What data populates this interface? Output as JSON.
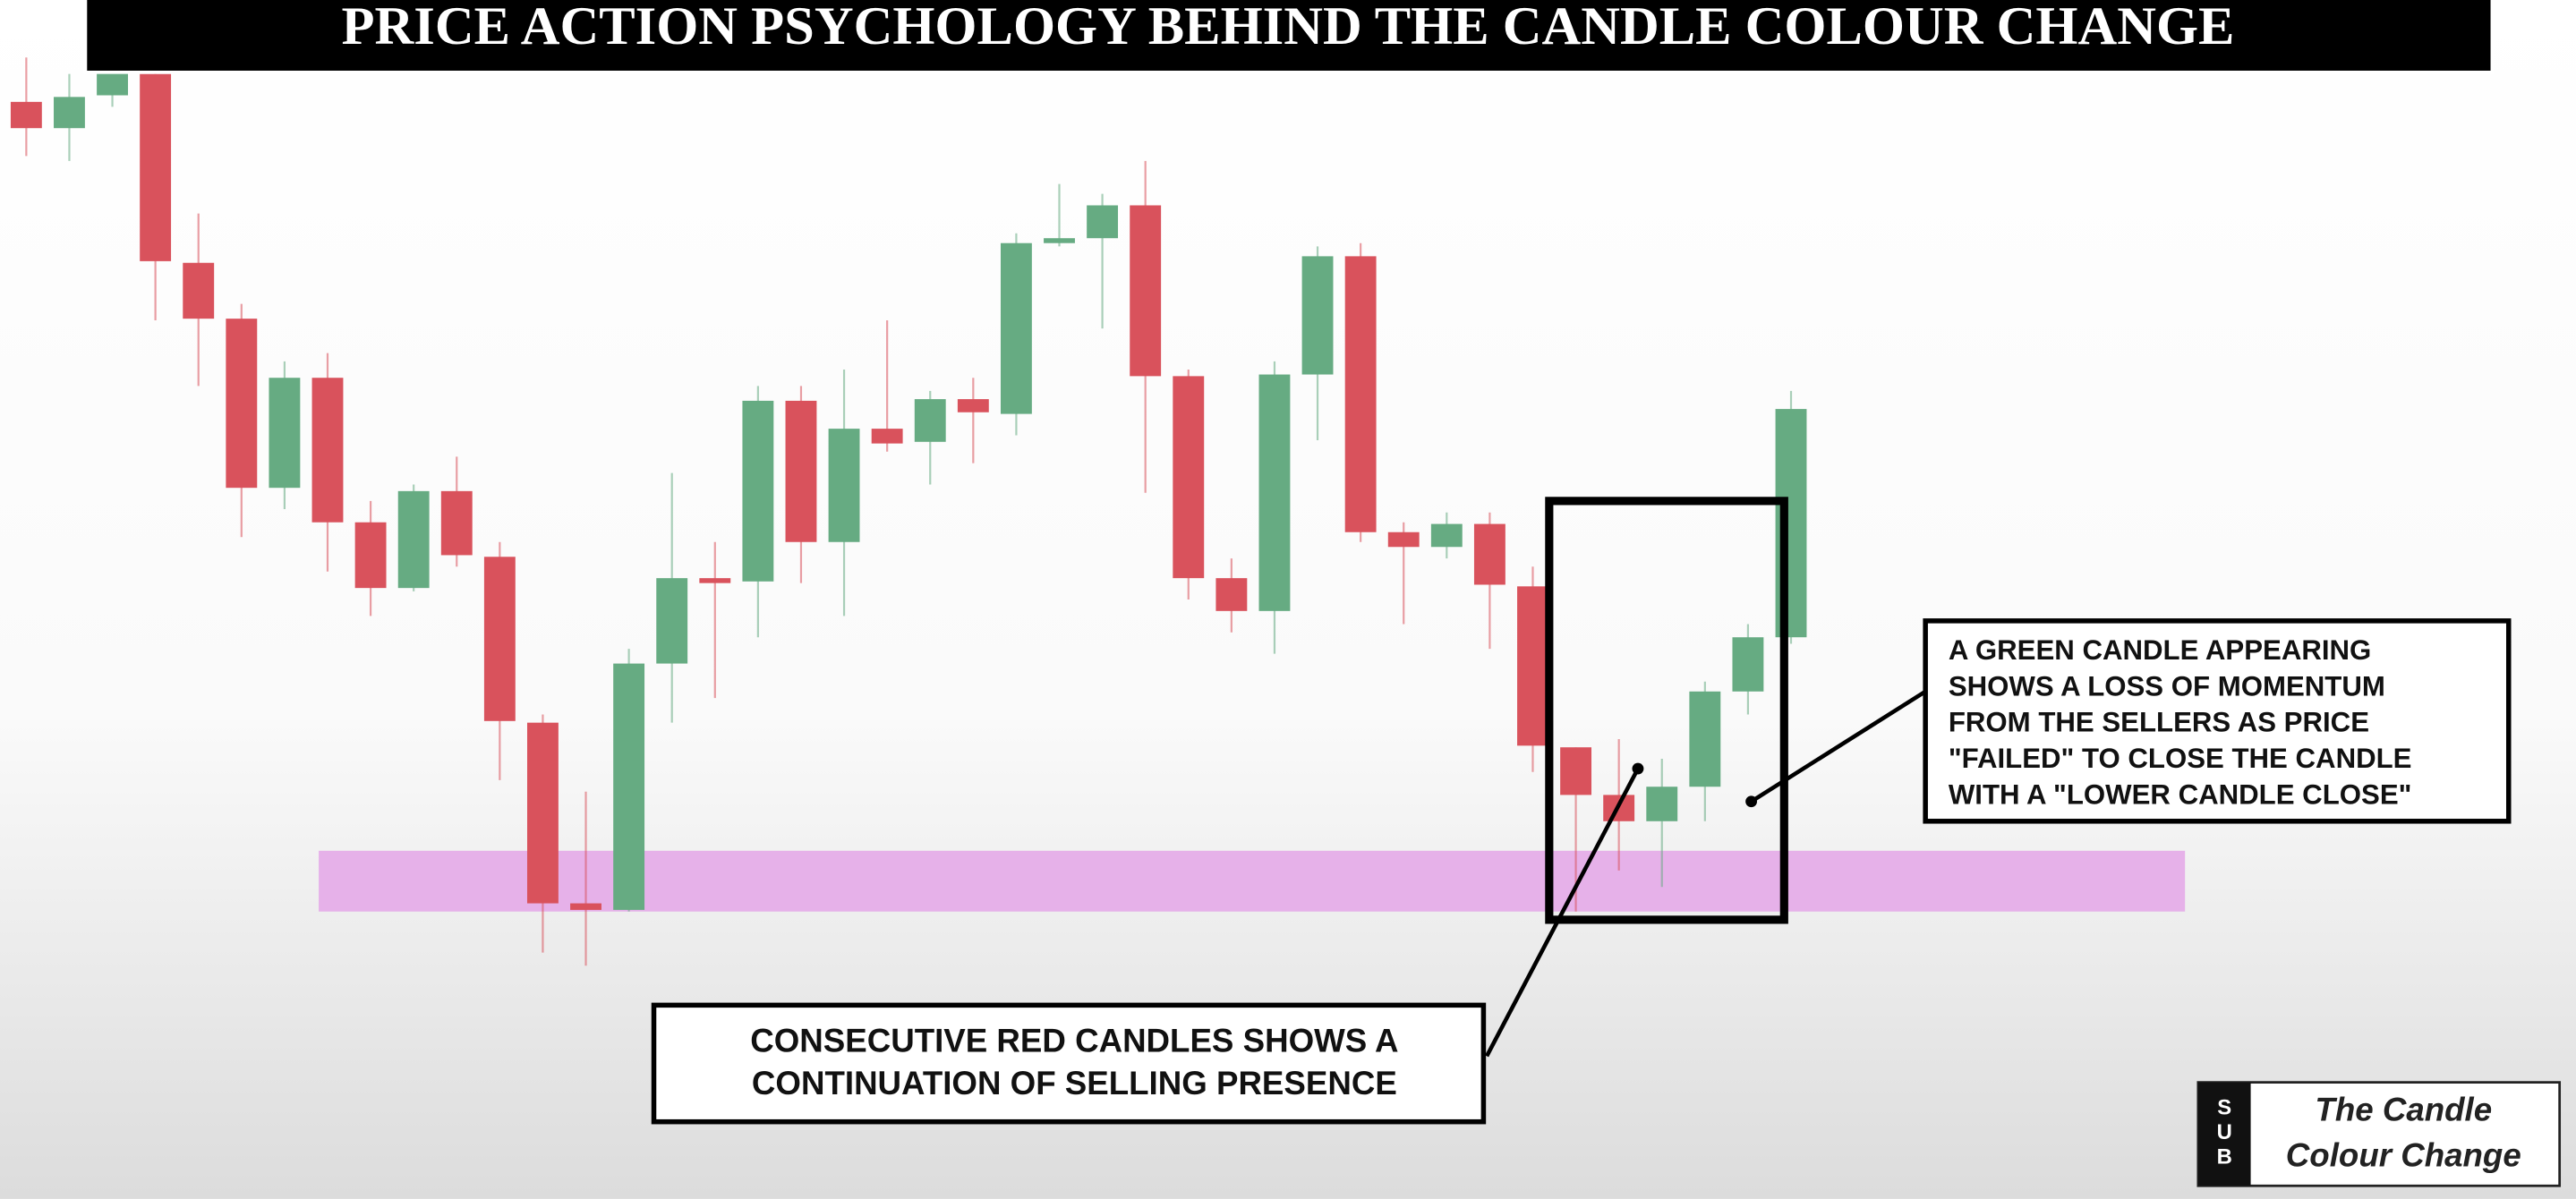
{
  "chart_data": {
    "type": "candlestick",
    "title": "PRICE ACTION PSYCHOLOGY BEHIND THE CANDLE COLOUR CHANGE",
    "open": [
      668,
      652,
      672,
      685,
      570,
      536,
      433,
      500,
      412,
      372,
      431,
      391,
      290,
      180,
      176,
      326,
      378,
      376,
      486,
      400,
      469,
      461,
      487,
      478,
      582,
      585,
      605,
      501,
      378,
      358,
      502,
      574,
      406,
      397,
      411,
      373,
      275,
      246,
      230,
      251,
      309,
      342
    ],
    "high": [
      695,
      685,
      700,
      690,
      600,
      545,
      510,
      515,
      425,
      435,
      452,
      400,
      295,
      248,
      335,
      442,
      400,
      495,
      495,
      505,
      535,
      492,
      500,
      588,
      618,
      612,
      632,
      505,
      390,
      510,
      580,
      582,
      412,
      418,
      418,
      385,
      275,
      280,
      268,
      315,
      350,
      492
    ],
    "low": [
      635,
      632,
      665,
      535,
      495,
      403,
      420,
      382,
      355,
      370,
      385,
      255,
      150,
      142,
      175,
      290,
      305,
      342,
      375,
      355,
      455,
      435,
      448,
      465,
      580,
      530,
      430,
      365,
      345,
      332,
      462,
      400,
      350,
      390,
      335,
      260,
      175,
      200,
      190,
      230,
      295,
      338
    ],
    "close": [
      652,
      671,
      688,
      571,
      536,
      433,
      500,
      412,
      372,
      431,
      392,
      291,
      180,
      176,
      326,
      378,
      375,
      486,
      400,
      469,
      460,
      487,
      479,
      582,
      585,
      605,
      501,
      378,
      358,
      502,
      574,
      406,
      397,
      411,
      374,
      276,
      246,
      230,
      251,
      309,
      342,
      481
    ],
    "up_color": "#66ab82",
    "down_color": "#d9525c",
    "ylim": [
      0,
      730
    ],
    "zone": {
      "low": 175,
      "high": 212,
      "color": "#e4a6e8"
    },
    "annotations": [
      {
        "lines": [
          "CONSECUTIVE RED CANDLES SHOWS A",
          "CONTINUATION OF SELLING PRESENCE"
        ]
      },
      {
        "lines": [
          "A GREEN CANDLE APPEARING",
          "SHOWS A LOSS OF MOMENTUM",
          "FROM THE SELLERS AS PRICE",
          "\"FAILED\" TO CLOSE THE CANDLE",
          "WITH A \"LOWER CANDLE CLOSE\""
        ]
      }
    ]
  },
  "brand": {
    "badge": [
      "S",
      "U",
      "B"
    ],
    "lines": [
      "The Candle",
      "Colour Change"
    ]
  }
}
